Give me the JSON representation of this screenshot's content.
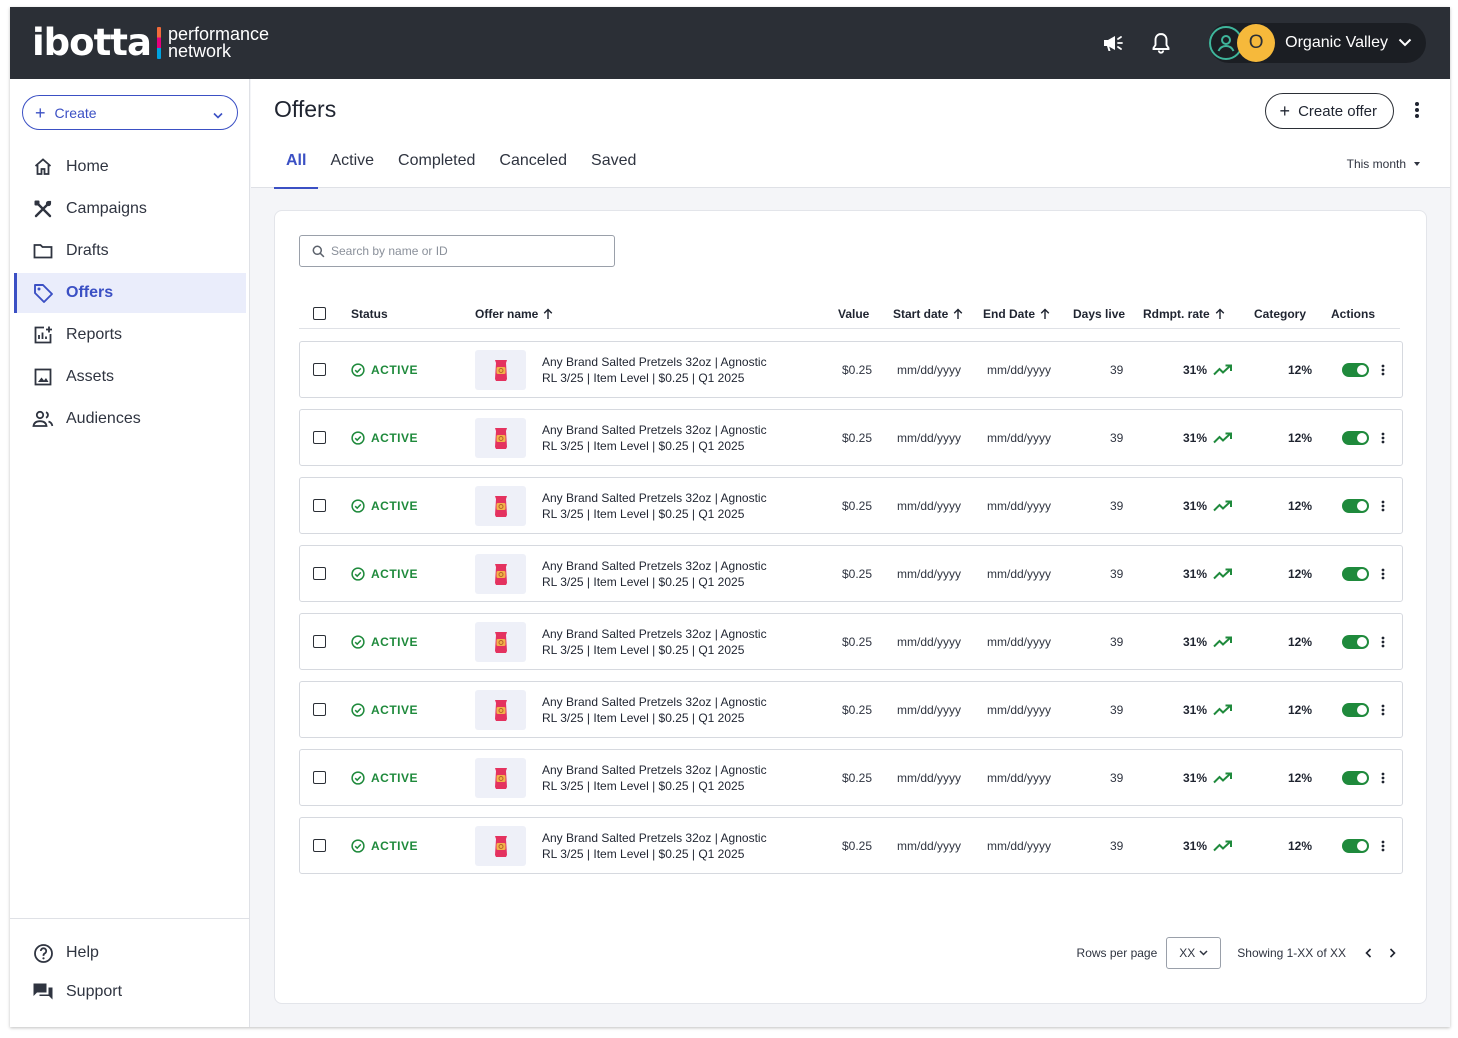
{
  "brand": {
    "word": "ibotta",
    "sub_line1": "performance",
    "sub_line2": "network"
  },
  "topbar": {
    "account_initial": "O",
    "account_name": "Organic Valley"
  },
  "sidebar": {
    "create_label": "Create",
    "items": [
      {
        "name": "home",
        "label": "Home",
        "icon": "home-icon"
      },
      {
        "name": "campaigns",
        "label": "Campaigns",
        "icon": "tools-icon"
      },
      {
        "name": "drafts",
        "label": "Drafts",
        "icon": "folder-icon"
      },
      {
        "name": "offers",
        "label": "Offers",
        "icon": "tag-icon",
        "active": true
      },
      {
        "name": "reports",
        "label": "Reports",
        "icon": "reports-icon"
      },
      {
        "name": "assets",
        "label": "Assets",
        "icon": "image-icon"
      },
      {
        "name": "audiences",
        "label": "Audiences",
        "icon": "people-icon"
      }
    ],
    "bottom": [
      {
        "name": "help",
        "label": "Help",
        "icon": "help-icon"
      },
      {
        "name": "support",
        "label": "Support",
        "icon": "chat-icon"
      }
    ]
  },
  "page": {
    "title": "Offers",
    "create_offer_label": "Create offer",
    "tabs": [
      "All",
      "Active",
      "Completed",
      "Canceled",
      "Saved"
    ],
    "active_tab": "All",
    "period": "This month"
  },
  "search": {
    "placeholder": "Search by name or ID",
    "value": ""
  },
  "table": {
    "headers": {
      "status": "Status",
      "offer_name": "Offer name",
      "value": "Value",
      "start_date": "Start date",
      "end_date": "End Date",
      "days_live": "Days live",
      "rdmpt_rate": "Rdmpt. rate",
      "category": "Category",
      "actions": "Actions"
    },
    "rows": [
      {
        "status": "ACTIVE",
        "name_line1": "Any Brand Salted Pretzels 32oz | Agnostic",
        "name_line2": "RL 3/25 | Item Level | $0.25 | Q1 2025",
        "value": "$0.25",
        "start": "mm/dd/yyyy",
        "end": "mm/dd/yyyy",
        "days": "39",
        "rate": "31%",
        "category": "12%"
      },
      {
        "status": "ACTIVE",
        "name_line1": "Any Brand Salted Pretzels 32oz | Agnostic",
        "name_line2": "RL 3/25 | Item Level | $0.25 | Q1 2025",
        "value": "$0.25",
        "start": "mm/dd/yyyy",
        "end": "mm/dd/yyyy",
        "days": "39",
        "rate": "31%",
        "category": "12%"
      },
      {
        "status": "ACTIVE",
        "name_line1": "Any Brand Salted Pretzels 32oz | Agnostic",
        "name_line2": "RL 3/25 | Item Level | $0.25 | Q1 2025",
        "value": "$0.25",
        "start": "mm/dd/yyyy",
        "end": "mm/dd/yyyy",
        "days": "39",
        "rate": "31%",
        "category": "12%"
      },
      {
        "status": "ACTIVE",
        "name_line1": "Any Brand Salted Pretzels 32oz | Agnostic",
        "name_line2": "RL 3/25 | Item Level | $0.25 | Q1 2025",
        "value": "$0.25",
        "start": "mm/dd/yyyy",
        "end": "mm/dd/yyyy",
        "days": "39",
        "rate": "31%",
        "category": "12%"
      },
      {
        "status": "ACTIVE",
        "name_line1": "Any Brand Salted Pretzels 32oz | Agnostic",
        "name_line2": "RL 3/25 | Item Level | $0.25 | Q1 2025",
        "value": "$0.25",
        "start": "mm/dd/yyyy",
        "end": "mm/dd/yyyy",
        "days": "39",
        "rate": "31%",
        "category": "12%"
      },
      {
        "status": "ACTIVE",
        "name_line1": "Any Brand Salted Pretzels 32oz | Agnostic",
        "name_line2": "RL 3/25 | Item Level | $0.25 | Q1 2025",
        "value": "$0.25",
        "start": "mm/dd/yyyy",
        "end": "mm/dd/yyyy",
        "days": "39",
        "rate": "31%",
        "category": "12%"
      },
      {
        "status": "ACTIVE",
        "name_line1": "Any Brand Salted Pretzels 32oz | Agnostic",
        "name_line2": "RL 3/25 | Item Level | $0.25 | Q1 2025",
        "value": "$0.25",
        "start": "mm/dd/yyyy",
        "end": "mm/dd/yyyy",
        "days": "39",
        "rate": "31%",
        "category": "12%"
      },
      {
        "status": "ACTIVE",
        "name_line1": "Any Brand Salted Pretzels 32oz | Agnostic",
        "name_line2": "RL 3/25 | Item Level | $0.25 | Q1 2025",
        "value": "$0.25",
        "start": "mm/dd/yyyy",
        "end": "mm/dd/yyyy",
        "days": "39",
        "rate": "31%",
        "category": "12%"
      }
    ]
  },
  "pagination": {
    "rows_per_page_label": "Rows per page",
    "rows_per_page_value": "XX",
    "showing": "Showing 1-XX of XX"
  },
  "colors": {
    "accent": "#3b50c4",
    "topbar": "#2b2f36",
    "active_green": "#1f8a3c",
    "avatar": "#f6b93b"
  }
}
